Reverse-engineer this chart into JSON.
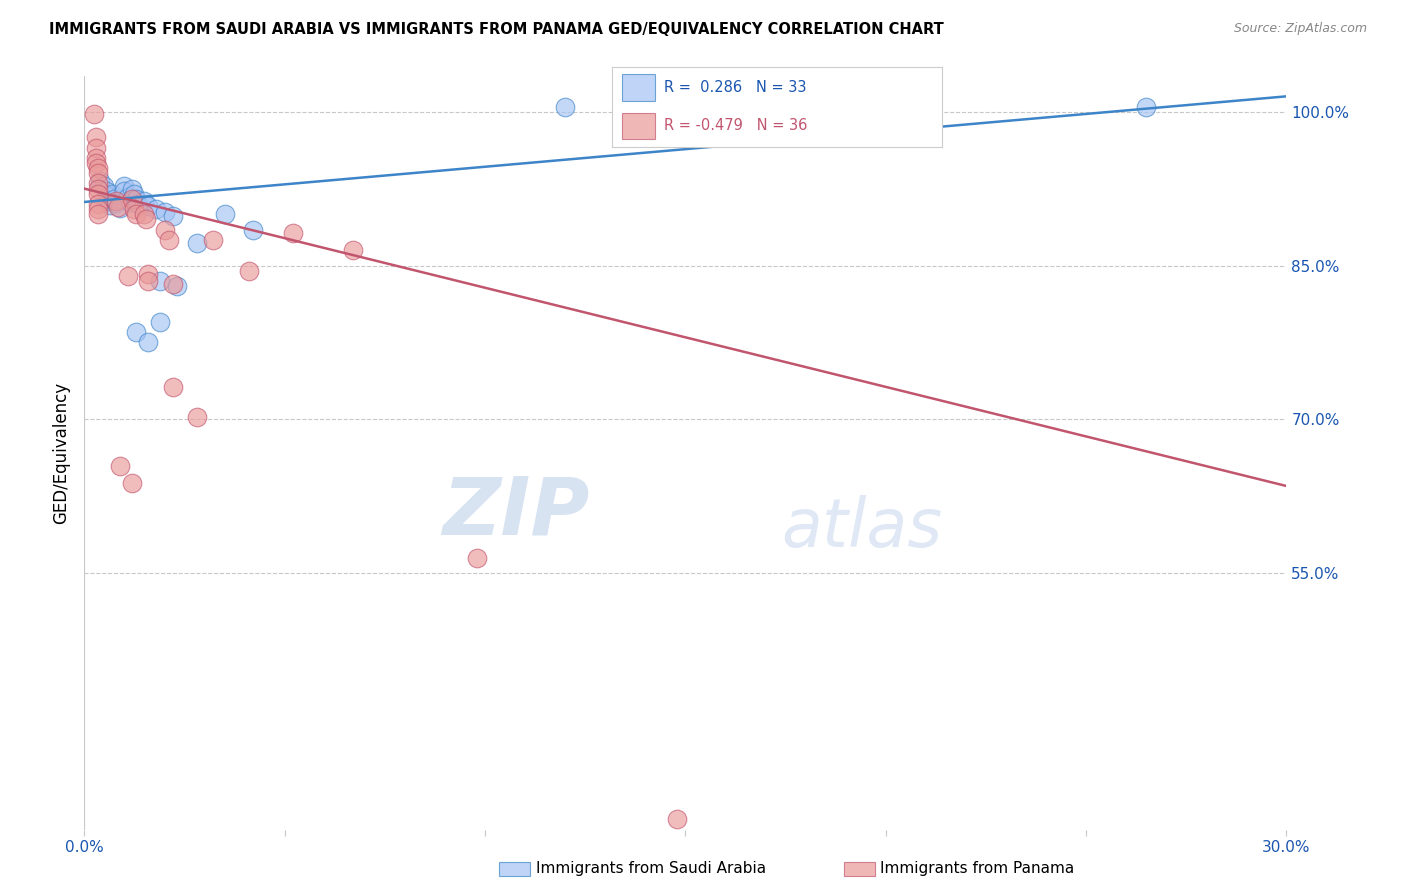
{
  "title": "IMMIGRANTS FROM SAUDI ARABIA VS IMMIGRANTS FROM PANAMA GED/EQUIVALENCY CORRELATION CHART",
  "source": "Source: ZipAtlas.com",
  "ylabel": "GED/Equivalency",
  "xlim": [
    0.0,
    30.0
  ],
  "ylim": [
    30.0,
    103.5
  ],
  "right_yticks": [
    100.0,
    85.0,
    70.0,
    55.0
  ],
  "right_ytick_labels": [
    "100.0%",
    "85.0%",
    "70.0%",
    "55.0%"
  ],
  "legend_blue_label": "Immigrants from Saudi Arabia",
  "legend_pink_label": "Immigrants from Panama",
  "R_blue": 0.286,
  "N_blue": 33,
  "R_pink": -0.479,
  "N_pink": 36,
  "blue_color": "#a4c2f4",
  "pink_color": "#ea9999",
  "blue_line_color": "#3d85c8",
  "pink_line_color": "#c2556e",
  "watermark_zip": "ZIP",
  "watermark_atlas": "atlas",
  "blue_line": [
    0.0,
    91.2,
    30.0,
    101.5
  ],
  "pink_line": [
    0.0,
    92.5,
    30.0,
    63.5
  ],
  "blue_dots": [
    [
      0.4,
      93.2
    ],
    [
      0.5,
      92.8
    ],
    [
      0.55,
      92.3
    ],
    [
      0.6,
      91.8
    ],
    [
      0.6,
      91.3
    ],
    [
      0.65,
      90.9
    ],
    [
      0.7,
      92.0
    ],
    [
      0.75,
      91.5
    ],
    [
      0.8,
      91.1
    ],
    [
      0.9,
      90.6
    ],
    [
      1.0,
      92.8
    ],
    [
      1.0,
      92.3
    ],
    [
      1.1,
      91.7
    ],
    [
      1.15,
      91.2
    ],
    [
      1.2,
      92.5
    ],
    [
      1.25,
      92.0
    ],
    [
      1.3,
      91.5
    ],
    [
      1.35,
      91.0
    ],
    [
      1.5,
      91.3
    ],
    [
      1.6,
      90.8
    ],
    [
      1.8,
      90.5
    ],
    [
      2.0,
      90.2
    ],
    [
      2.2,
      89.8
    ],
    [
      3.5,
      90.0
    ],
    [
      4.2,
      88.5
    ],
    [
      2.8,
      87.2
    ],
    [
      1.9,
      83.5
    ],
    [
      2.3,
      83.0
    ],
    [
      1.3,
      78.5
    ],
    [
      1.6,
      77.5
    ],
    [
      1.9,
      79.5
    ],
    [
      12.0,
      100.5
    ],
    [
      26.5,
      100.5
    ]
  ],
  "pink_dots": [
    [
      0.25,
      99.8
    ],
    [
      0.3,
      97.5
    ],
    [
      0.3,
      96.5
    ],
    [
      0.3,
      95.5
    ],
    [
      0.3,
      95.0
    ],
    [
      0.35,
      94.5
    ],
    [
      0.35,
      94.0
    ],
    [
      0.35,
      93.0
    ],
    [
      0.35,
      92.5
    ],
    [
      0.35,
      92.0
    ],
    [
      0.35,
      91.0
    ],
    [
      0.35,
      90.5
    ],
    [
      0.35,
      90.0
    ],
    [
      0.8,
      91.3
    ],
    [
      0.85,
      90.7
    ],
    [
      1.2,
      91.5
    ],
    [
      1.25,
      90.5
    ],
    [
      1.3,
      90.0
    ],
    [
      1.5,
      90.0
    ],
    [
      1.55,
      89.5
    ],
    [
      2.0,
      88.5
    ],
    [
      2.1,
      87.5
    ],
    [
      3.2,
      87.5
    ],
    [
      5.2,
      88.2
    ],
    [
      4.1,
      84.5
    ],
    [
      6.7,
      86.5
    ],
    [
      1.6,
      84.2
    ],
    [
      2.2,
      83.2
    ],
    [
      1.1,
      84.0
    ],
    [
      1.6,
      83.5
    ],
    [
      2.2,
      73.2
    ],
    [
      2.8,
      70.2
    ],
    [
      0.9,
      65.5
    ],
    [
      1.2,
      63.8
    ],
    [
      14.8,
      31.0
    ],
    [
      9.8,
      56.5
    ]
  ]
}
